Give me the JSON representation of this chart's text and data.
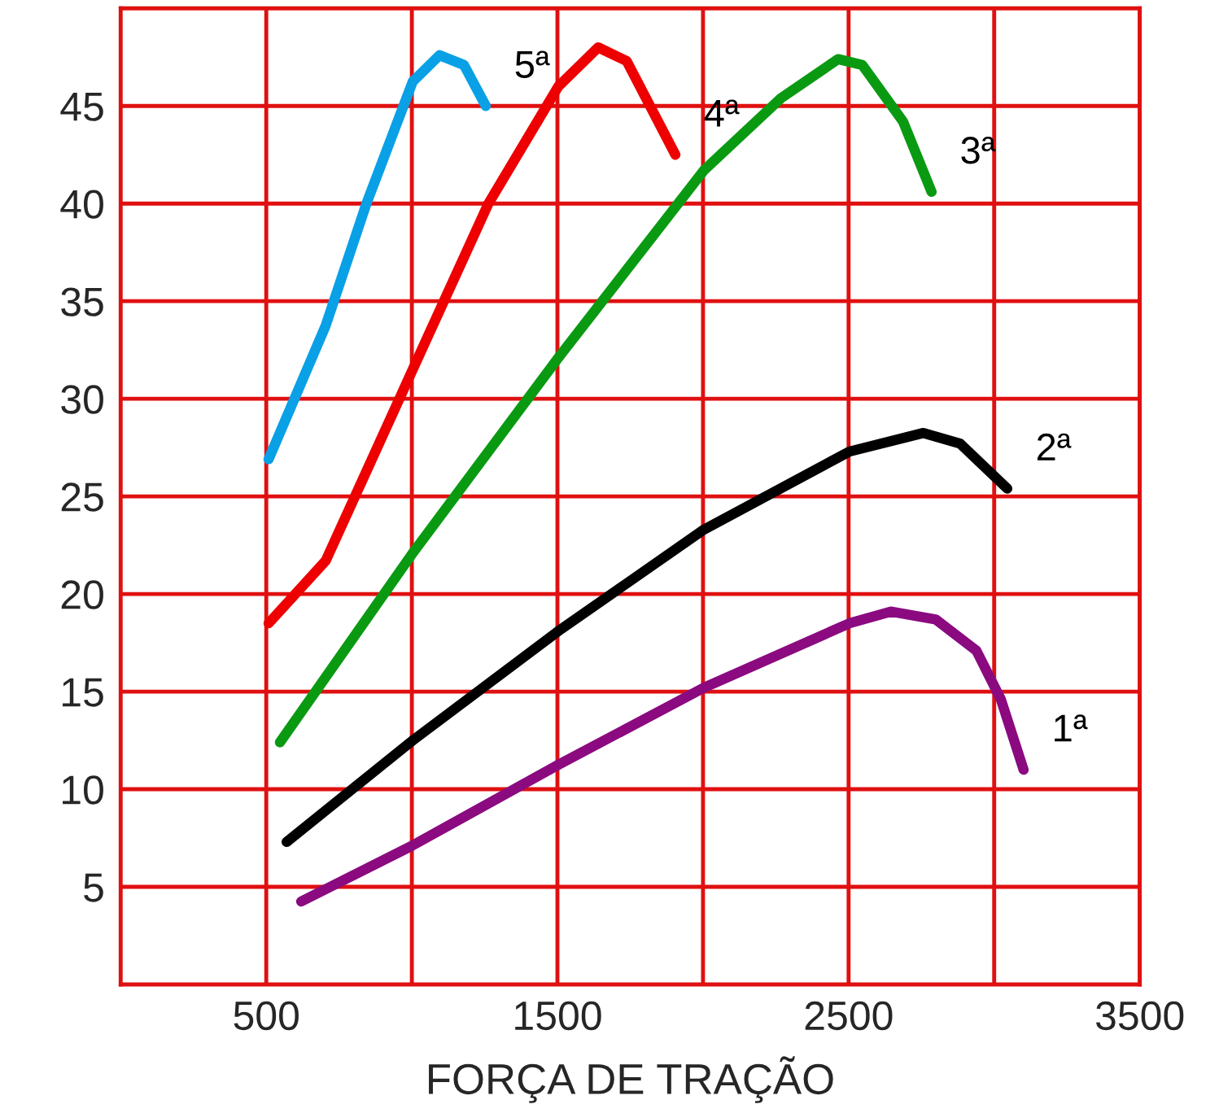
{
  "chart_data": {
    "type": "line",
    "xlabel": "FORÇA DE TRAÇÃO",
    "xlim": [
      0,
      3500
    ],
    "ylim": [
      0,
      50
    ],
    "xticks": [
      500,
      {
        "value": 1000,
        "label": null
      },
      1500,
      {
        "value": 2000,
        "label": null
      },
      2500,
      {
        "value": 3000,
        "label": null
      },
      3500
    ],
    "yticks": [
      5,
      10,
      15,
      20,
      25,
      30,
      35,
      40,
      45
    ],
    "grid": true,
    "legend": false,
    "marker": "none",
    "line_style": "solid",
    "series": [
      {
        "name": "1ª",
        "color": "#8b0a80",
        "x": [
          620,
          1000,
          1503,
          2003,
          2503,
          2645,
          2799,
          2939,
          3023,
          3101
        ],
        "values": [
          4.25,
          7.1,
          11.25,
          15.2,
          18.5,
          19.1,
          18.7,
          17.1,
          14.6,
          11.0
        ]
      },
      {
        "name": "2ª",
        "color": "#000000",
        "x": [
          570,
          1003,
          1503,
          2003,
          2503,
          2757,
          2883,
          3045
        ],
        "values": [
          7.3,
          12.5,
          18.1,
          23.3,
          27.3,
          28.25,
          27.7,
          25.4
        ]
      },
      {
        "name": "3ª",
        "color": "#0a9a12",
        "x": [
          547,
          1003,
          1503,
          2003,
          2268,
          2464,
          2547,
          2687,
          2785
        ],
        "values": [
          12.4,
          22.1,
          32.1,
          41.7,
          45.4,
          47.4,
          47.1,
          44.2,
          40.6
        ]
      },
      {
        "name": "4ª",
        "color": "#ee0000",
        "x": [
          508,
          704,
          1003,
          1263,
          1503,
          1640,
          1738,
          1905
        ],
        "values": [
          18.5,
          21.7,
          31.5,
          40,
          46,
          48.0,
          47.3,
          42.5
        ]
      },
      {
        "name": "5ª",
        "color": "#0aa0e6",
        "x": [
          508,
          704,
          844,
          1003,
          1095,
          1179,
          1254
        ],
        "values": [
          26.9,
          33.75,
          40,
          46.25,
          47.6,
          47.1,
          45
        ]
      }
    ]
  }
}
